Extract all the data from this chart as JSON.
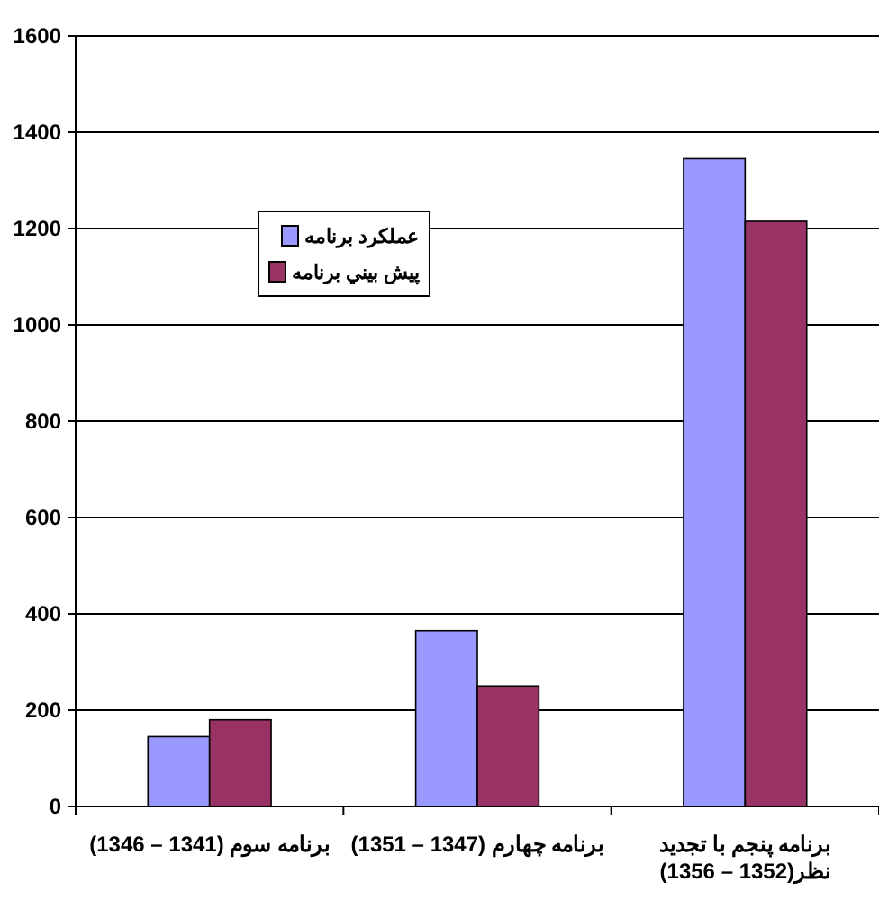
{
  "chart_data": {
    "type": "bar",
    "categories": [
      "برنامه سوم (1341 – 1346)",
      "برنامه چهارم (1347 – 1351)",
      "برنامه پنجم با تجدید نظر(1352 – 1356)"
    ],
    "series": [
      {
        "name": "عملکرد برنامه",
        "color": "#9999ff",
        "values": [
          145,
          365,
          1345
        ]
      },
      {
        "name": "پيش بيني برنامه",
        "color": "#993366",
        "values": [
          180,
          250,
          1215
        ]
      }
    ],
    "ylim": [
      0,
      1600
    ],
    "yticks": [
      0,
      200,
      400,
      600,
      800,
      1000,
      1200,
      1400,
      1600
    ],
    "grid": "y",
    "legend": "top left"
  }
}
